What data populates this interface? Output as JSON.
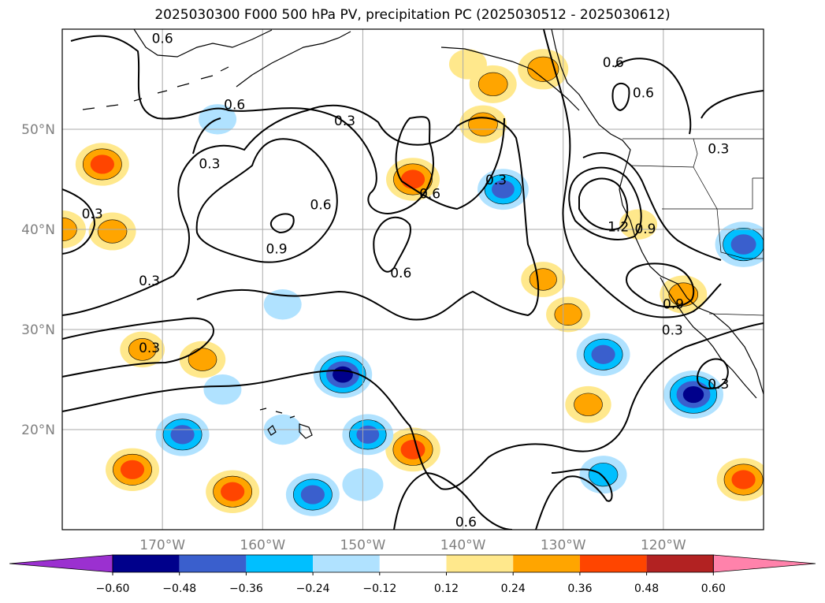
{
  "title": "2025030300 F000 500 hPa PV, precipitation PC (2025030512 - 2025030612)",
  "map": {
    "lat_labels": [
      "50°N",
      "40°N",
      "30°N",
      "20°N"
    ],
    "lon_labels": [
      "170°W",
      "160°W",
      "150°W",
      "140°W",
      "130°W",
      "120°W"
    ],
    "lon_range": [
      -180,
      -110
    ],
    "lat_range": [
      10,
      60
    ],
    "gridlines": true
  },
  "pv_contour_labels": [
    {
      "text": "0.6",
      "lon": -170.0,
      "lat": 59.0
    },
    {
      "text": "0.6",
      "lon": -162.8,
      "lat": 52.4
    },
    {
      "text": "0.3",
      "lon": -151.8,
      "lat": 50.8
    },
    {
      "text": "0.3",
      "lon": -165.3,
      "lat": 46.5
    },
    {
      "text": "0.6",
      "lon": -143.3,
      "lat": 43.5
    },
    {
      "text": "0.3",
      "lon": -136.7,
      "lat": 44.9
    },
    {
      "text": "0.3",
      "lon": -177.0,
      "lat": 41.5
    },
    {
      "text": "0.6",
      "lon": -154.2,
      "lat": 42.4
    },
    {
      "text": "0.9",
      "lon": -158.6,
      "lat": 38.0
    },
    {
      "text": "0.6",
      "lon": -146.2,
      "lat": 35.6
    },
    {
      "text": "0.3",
      "lon": -171.3,
      "lat": 34.8
    },
    {
      "text": "0.3",
      "lon": -171.3,
      "lat": 28.1
    },
    {
      "text": "1.2",
      "lon": -124.5,
      "lat": 40.2
    },
    {
      "text": "0.9",
      "lon": -121.8,
      "lat": 40.0
    },
    {
      "text": "0.9",
      "lon": -119.0,
      "lat": 32.5
    },
    {
      "text": "0.3",
      "lon": -119.1,
      "lat": 29.9
    },
    {
      "text": "0.3",
      "lon": -114.5,
      "lat": 24.5
    },
    {
      "text": "0.6",
      "lon": -125.0,
      "lat": 56.6
    },
    {
      "text": "0.6",
      "lon": -122.0,
      "lat": 53.6
    },
    {
      "text": "0.3",
      "lon": -114.5,
      "lat": 48.0
    },
    {
      "text": "0.6",
      "lon": -139.7,
      "lat": 10.7
    }
  ],
  "precip_anomalies": [
    {
      "lon": -176,
      "lat": 46.5,
      "value": 0.4
    },
    {
      "lon": -180,
      "lat": 40.0,
      "value": 0.3
    },
    {
      "lon": -175,
      "lat": 39.8,
      "value": 0.3
    },
    {
      "lon": -145,
      "lat": 45.0,
      "value": 0.4
    },
    {
      "lon": -138,
      "lat": 50.5,
      "value": 0.3
    },
    {
      "lon": -137,
      "lat": 54.5,
      "value": 0.3
    },
    {
      "lon": -132,
      "lat": 56.0,
      "value": 0.35
    },
    {
      "lon": -139.5,
      "lat": 56.5,
      "value": 0.15
    },
    {
      "lon": -136,
      "lat": 44.0,
      "value": -0.36
    },
    {
      "lon": -132,
      "lat": 35.0,
      "value": 0.25
    },
    {
      "lon": -129.5,
      "lat": 31.5,
      "value": 0.25
    },
    {
      "lon": -126,
      "lat": 27.5,
      "value": -0.4
    },
    {
      "lon": -118,
      "lat": 33.5,
      "value": 0.3
    },
    {
      "lon": -117,
      "lat": 23.5,
      "value": -0.5
    },
    {
      "lon": -112,
      "lat": 38.5,
      "value": -0.45
    },
    {
      "lon": -122.5,
      "lat": 40.5,
      "value": 0.15
    },
    {
      "lon": -127.5,
      "lat": 22.5,
      "value": 0.28
    },
    {
      "lon": -152,
      "lat": 25.5,
      "value": -0.48
    },
    {
      "lon": -145,
      "lat": 18.0,
      "value": 0.42
    },
    {
      "lon": -149.5,
      "lat": 19.5,
      "value": -0.36
    },
    {
      "lon": -155,
      "lat": 13.5,
      "value": -0.4
    },
    {
      "lon": -150,
      "lat": 14.5,
      "value": -0.2
    },
    {
      "lon": -163,
      "lat": 13.8,
      "value": 0.4
    },
    {
      "lon": -168,
      "lat": 19.5,
      "value": -0.4
    },
    {
      "lon": -173,
      "lat": 16.0,
      "value": 0.4
    },
    {
      "lon": -166,
      "lat": 27.0,
      "value": 0.28
    },
    {
      "lon": -172,
      "lat": 28.0,
      "value": 0.26
    },
    {
      "lon": -126,
      "lat": 15.5,
      "value": -0.3
    },
    {
      "lon": -112,
      "lat": 15.0,
      "value": 0.4
    },
    {
      "lon": -164.5,
      "lat": 51.0,
      "value": -0.15
    },
    {
      "lon": -158,
      "lat": 32.5,
      "value": -0.15
    },
    {
      "lon": -164,
      "lat": 24.0,
      "value": -0.15
    },
    {
      "lon": -158,
      "lat": 20.0,
      "value": -0.15
    }
  ],
  "colorbar": {
    "ticks": [
      "−0.60",
      "−0.48",
      "−0.36",
      "−0.24",
      "−0.12",
      "0.12",
      "0.24",
      "0.36",
      "0.48",
      "0.60"
    ],
    "levels": [
      -0.6,
      -0.48,
      -0.36,
      -0.24,
      -0.12,
      0.12,
      0.24,
      0.36,
      0.48,
      0.6
    ],
    "colors": [
      "#9b30d0",
      "#00008b",
      "#3a5fcd",
      "#00bfff",
      "#b0e2ff",
      "#ffffff",
      "#ffe88c",
      "#ffa500",
      "#ff4500",
      "#b22222",
      "#ff82ab"
    ],
    "extend": "both"
  }
}
